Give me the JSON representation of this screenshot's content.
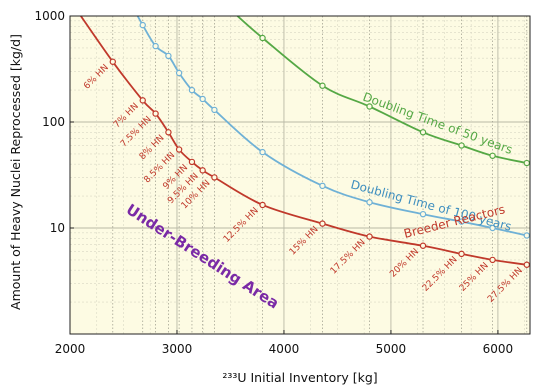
{
  "chart_data": {
    "type": "line",
    "xlabel": "²³³U Initial Inventory [kg]",
    "ylabel": "Amount of Heavy Nuclei Reprocessed [kg/d]",
    "xlim": [
      2000,
      6300
    ],
    "ylim": [
      1,
      1000
    ],
    "yscale": "log",
    "grid": true,
    "x_ticks": [
      "2000",
      "3000",
      "4000",
      "5000",
      "6000"
    ],
    "y_ticks": [
      "10",
      "100",
      "1000"
    ],
    "series": [
      {
        "name": "Breeder Reactors",
        "color": "#c0392b",
        "points": [
          {
            "x": 2400,
            "y": 370,
            "label": "6% HN"
          },
          {
            "x": 2680,
            "y": 160,
            "label": "7% HN"
          },
          {
            "x": 2800,
            "y": 120,
            "label": "7.5% HN"
          },
          {
            "x": 2920,
            "y": 80,
            "label": "8% HN"
          },
          {
            "x": 3020,
            "y": 55,
            "label": "8.5% HN"
          },
          {
            "x": 3140,
            "y": 42,
            "label": "9% HN"
          },
          {
            "x": 3240,
            "y": 35,
            "label": "9.5% HN"
          },
          {
            "x": 3350,
            "y": 30,
            "label": "10% HN"
          },
          {
            "x": 3800,
            "y": 16.5,
            "label": "12.5% HN"
          },
          {
            "x": 4360,
            "y": 11,
            "label": "15% HN"
          },
          {
            "x": 4800,
            "y": 8.3,
            "label": "17.5% HN"
          },
          {
            "x": 5300,
            "y": 6.8,
            "label": "20% HN"
          },
          {
            "x": 5660,
            "y": 5.7,
            "label": "22.5% HN"
          },
          {
            "x": 5950,
            "y": 5.0,
            "label": "25% HN"
          },
          {
            "x": 6270,
            "y": 4.5,
            "label": "27.5% HN"
          }
        ]
      },
      {
        "name": "Doubling Time of 100 years",
        "color": "#6fb1d6",
        "points": [
          {
            "x": 2680,
            "y": 820
          },
          {
            "x": 2800,
            "y": 520
          },
          {
            "x": 2920,
            "y": 420
          },
          {
            "x": 3020,
            "y": 290
          },
          {
            "x": 3140,
            "y": 200
          },
          {
            "x": 3240,
            "y": 165
          },
          {
            "x": 3350,
            "y": 130
          },
          {
            "x": 3800,
            "y": 52
          },
          {
            "x": 4360,
            "y": 25
          },
          {
            "x": 4800,
            "y": 17.5
          },
          {
            "x": 5300,
            "y": 13.5
          },
          {
            "x": 5660,
            "y": 11.5
          },
          {
            "x": 5950,
            "y": 10
          },
          {
            "x": 6270,
            "y": 8.5
          }
        ]
      },
      {
        "name": "Doubling Time of 50 years",
        "color": "#55a845",
        "points": [
          {
            "x": 3800,
            "y": 620
          },
          {
            "x": 4360,
            "y": 220
          },
          {
            "x": 4800,
            "y": 140
          },
          {
            "x": 5300,
            "y": 80
          },
          {
            "x": 5660,
            "y": 60
          },
          {
            "x": 5950,
            "y": 48
          },
          {
            "x": 6270,
            "y": 41
          }
        ]
      }
    ],
    "series_labels": {
      "breeder": "Breeder Reactors",
      "dt100": "Doubling Time of 100 years",
      "dt50": "Doubling Time of 50 years"
    },
    "annotation": "Under-Breeding Area"
  }
}
